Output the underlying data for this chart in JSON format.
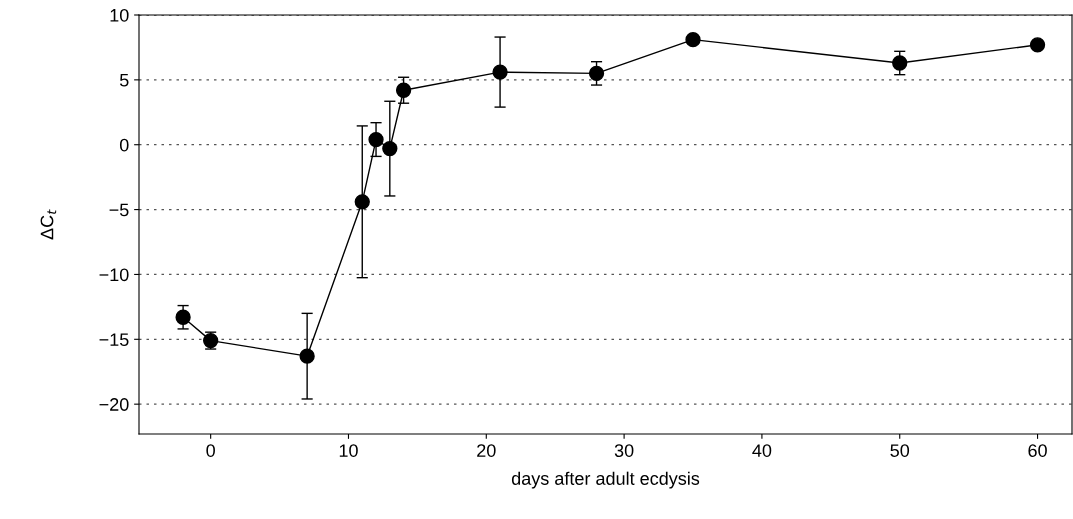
{
  "chart_data": {
    "type": "line",
    "xlabel": "days after adult ecdysis",
    "ylabel": "ΔC$_{t}$",
    "x": [
      -2,
      0,
      7,
      11,
      12,
      13,
      14,
      21,
      28,
      35,
      50,
      60
    ],
    "series": [
      {
        "color": "#000000",
        "values": [
          -13.3,
          -15.1,
          -16.3,
          -4.4,
          0.4,
          -0.3,
          4.2,
          5.6,
          5.5,
          8.1,
          6.3,
          7.7
        ],
        "errors": [
          0.9,
          0.65,
          3.3,
          5.85,
          1.3,
          3.65,
          1.0,
          2.7,
          0.9,
          0.3,
          0.9,
          0.3
        ]
      }
    ],
    "marker": "circle",
    "line_style": "solid",
    "xlim": [
      -5.2,
      62.5
    ],
    "ylim": [
      -22.3,
      10
    ],
    "xticks": [
      0,
      10,
      20,
      30,
      40,
      50,
      60
    ],
    "yticks": [
      -20,
      -15,
      -10,
      -5,
      0,
      5,
      10
    ],
    "grid": "y"
  }
}
